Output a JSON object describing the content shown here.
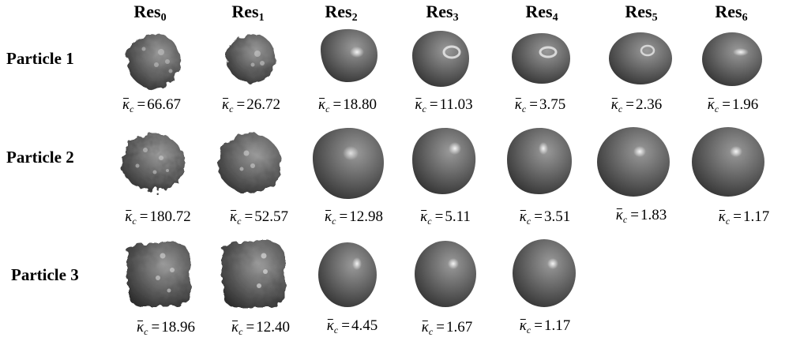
{
  "columns": [
    "Res",
    "Res",
    "Res",
    "Res",
    "Res",
    "Res",
    "Res"
  ],
  "column_subs": [
    "0",
    "1",
    "2",
    "3",
    "4",
    "5",
    "6"
  ],
  "rows": [
    {
      "label": "Particle 1",
      "kappa": [
        "66.67",
        "26.72",
        "18.80",
        "11.03",
        "3.75",
        "2.36",
        "1.96"
      ]
    },
    {
      "label": "Particle 2",
      "kappa": [
        "180.72",
        "52.57",
        "12.98",
        "5.11",
        "3.51",
        "1.83",
        "1.17"
      ]
    },
    {
      "label": "Particle 3",
      "kappa": [
        "18.96",
        "12.40",
        "4.45",
        "1.67",
        "1.17"
      ]
    }
  ],
  "kappa_symbol": "κ",
  "kappa_sub": "c",
  "eq_sign": "=",
  "colors": {
    "particle_base": "#6a6a6a",
    "particle_dark": "#2e2e2e",
    "highlight": "#e8e8e8"
  }
}
